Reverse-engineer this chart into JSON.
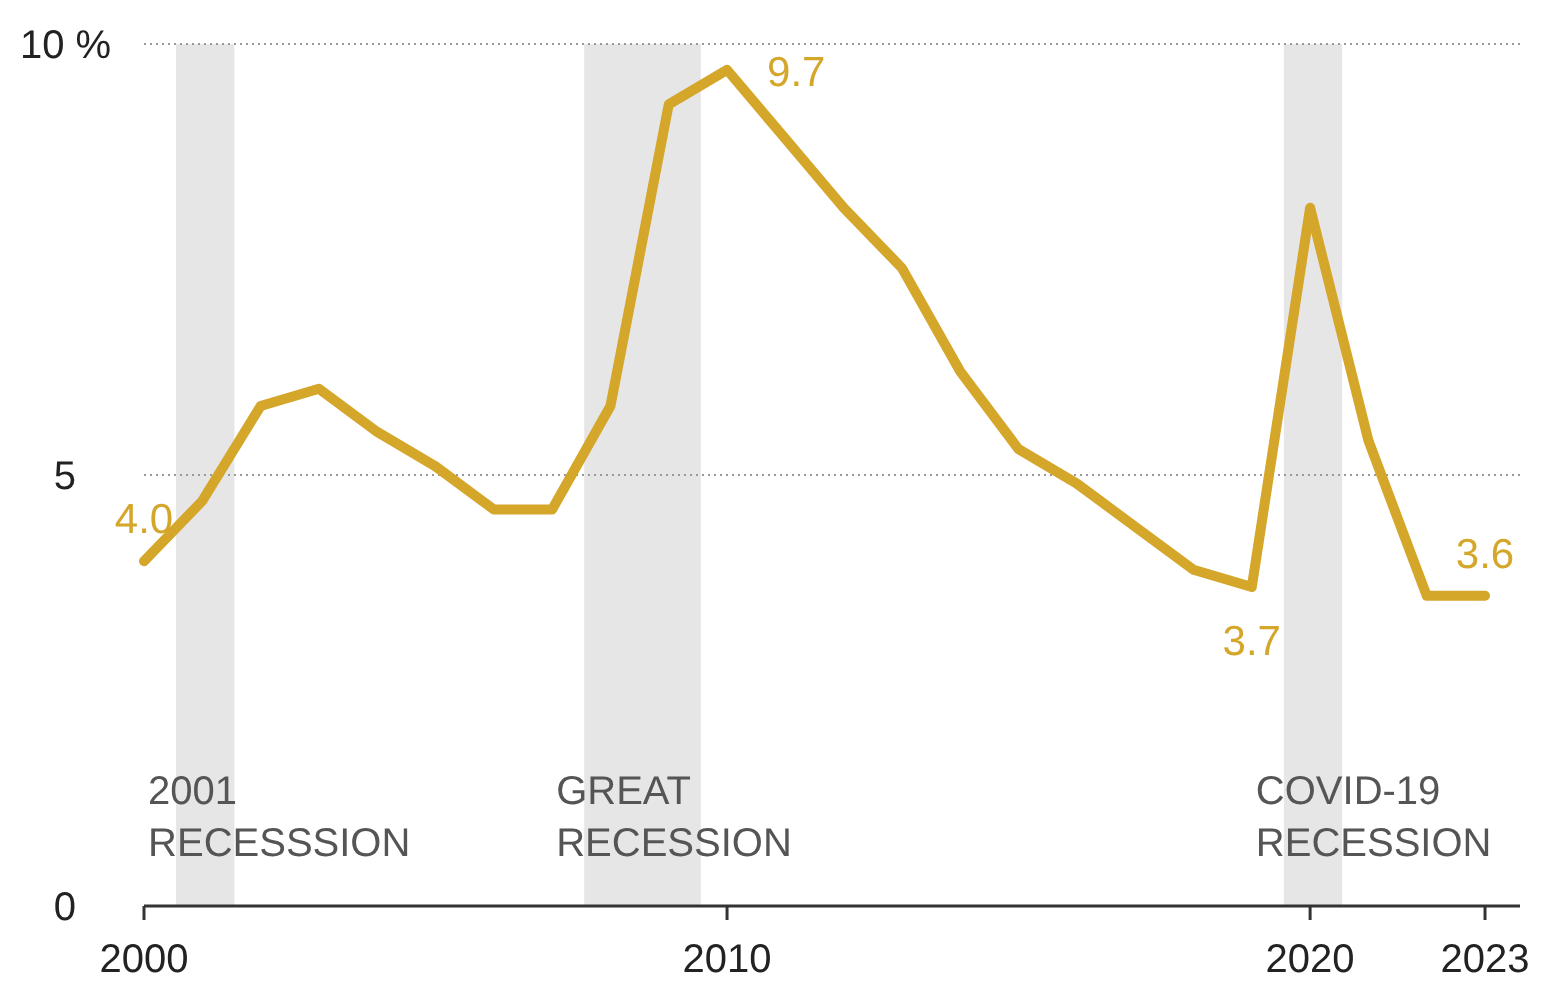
{
  "chart_data": {
    "type": "line",
    "x": [
      2000,
      2001,
      2002,
      2003,
      2004,
      2005,
      2006,
      2007,
      2008,
      2009,
      2010,
      2011,
      2012,
      2013,
      2014,
      2015,
      2016,
      2017,
      2018,
      2019,
      2020,
      2021,
      2022,
      2023
    ],
    "series": [
      {
        "color": "#d4a62a",
        "values": [
          4.0,
          4.7,
          5.8,
          6.0,
          5.5,
          5.1,
          4.6,
          4.6,
          5.8,
          9.3,
          9.7,
          8.9,
          8.1,
          7.4,
          6.2,
          5.3,
          4.9,
          4.4,
          3.9,
          3.7,
          8.1,
          5.4,
          3.6,
          3.6
        ],
        "value_labels": [
          "4.0",
          null,
          null,
          null,
          null,
          null,
          null,
          null,
          null,
          null,
          "9.7",
          null,
          null,
          null,
          null,
          null,
          null,
          null,
          null,
          "3.7",
          null,
          null,
          null,
          "3.6"
        ]
      }
    ],
    "xlim": [
      2000,
      2023.6
    ],
    "xticks": [
      2000,
      2010,
      2020,
      2023
    ],
    "ylim": [
      0,
      10
    ],
    "yticks": [
      0,
      5,
      {
        "value": 10,
        "label": "10 %"
      }
    ],
    "grid": "y",
    "marker": "none",
    "line_style": "solid",
    "bands": [
      {
        "axis": "x",
        "from": 2000.55,
        "to": 2001.55,
        "label": "2001\nRECESSSION",
        "color": "#e6e6e6"
      },
      {
        "axis": "x",
        "from": 2007.55,
        "to": 2009.55,
        "label": "GREAT\nRECESSION",
        "color": "#e6e6e6"
      },
      {
        "axis": "x",
        "from": 2019.55,
        "to": 2020.55,
        "label": "COVID-19\nRECESSION",
        "color": "#e6e6e6"
      }
    ]
  }
}
